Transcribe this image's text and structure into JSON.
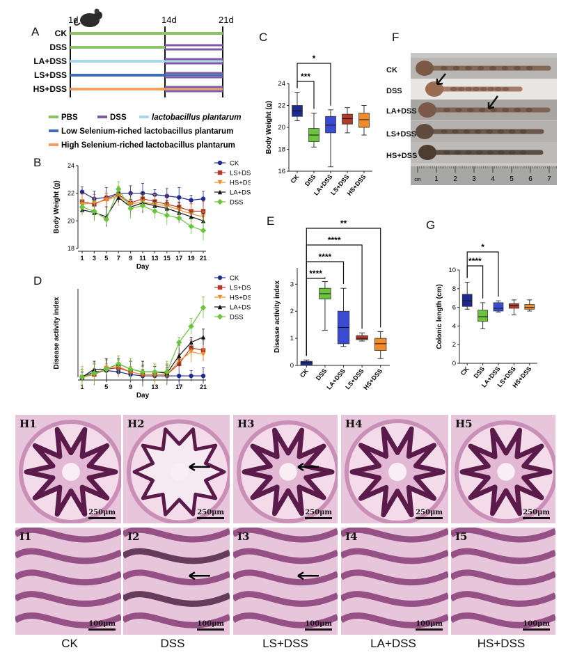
{
  "panel_labels": {
    "A": "A",
    "B": "B",
    "C": "C",
    "D": "D",
    "E": "E",
    "F": "F",
    "G": "G"
  },
  "panelA": {
    "days": [
      "1d",
      "14d",
      "21d"
    ],
    "groups": [
      "CK",
      "DSS",
      "LA+DSS",
      "LS+DSS",
      "HS+DSS"
    ],
    "legend": [
      {
        "label": "PBS",
        "color": "#8fc166",
        "italic": false
      },
      {
        "label": "DSS",
        "color": "#7b5aa6",
        "italic": false
      },
      {
        "label": "lactobacillus plantarum",
        "color": "#a9d8ee",
        "italic": true
      },
      {
        "label": "Low Selenium-riched lactobacillus plantarum",
        "color": "#3f6db5",
        "italic": false
      },
      {
        "label": "High Selenium-riched lactobacillus plantarum",
        "color": "#f0a061",
        "italic": false
      }
    ]
  },
  "panelF": {
    "groups": [
      "CK",
      "DSS",
      "LA+DSS",
      "LS+DSS",
      "HS+DSS"
    ],
    "ruler": [
      "cm",
      "1",
      "2",
      "3",
      "4",
      "5",
      "6",
      "7"
    ]
  },
  "histology": {
    "row1": [
      "H1",
      "H2",
      "H3",
      "H4",
      "H5"
    ],
    "row2": [
      "I1",
      "I2",
      "I3",
      "I4",
      "I5"
    ],
    "scale_row1": "250μm",
    "scale_row2": "100μm",
    "groups": [
      "CK",
      "DSS",
      "LS+DSS",
      "LA+DSS",
      "HS+DSS"
    ]
  },
  "chart_data": [
    {
      "id": "B",
      "type": "line",
      "ylabel": "Body Weight (g)",
      "xlabel": "Day",
      "x": [
        1,
        3,
        5,
        7,
        9,
        11,
        13,
        15,
        17,
        19,
        21
      ],
      "xticks": [
        "1",
        "3",
        "5",
        "7",
        "9",
        "11",
        "13",
        "15",
        "17",
        "19",
        "21"
      ],
      "ylim": [
        18,
        24
      ],
      "yticks": [
        "18",
        "20",
        "22",
        "24"
      ],
      "legend_position": "right",
      "series": [
        {
          "name": "CK",
          "color": "#1f2a8f",
          "marker": "circle",
          "values": [
            22.1,
            21.6,
            21.7,
            22.0,
            22.0,
            22.0,
            21.9,
            21.8,
            21.7,
            21.5,
            21.6
          ]
        },
        {
          "name": "LS+DSS",
          "color": "#b23a2a",
          "marker": "square",
          "values": [
            21.4,
            21.2,
            21.6,
            21.9,
            21.3,
            21.6,
            21.4,
            21.2,
            21.0,
            20.7,
            20.7
          ]
        },
        {
          "name": "HS+DSS",
          "color": "#f08c2a",
          "marker": "triangle-down",
          "values": [
            21.2,
            21.3,
            21.5,
            21.8,
            21.2,
            21.4,
            21.2,
            21.1,
            20.8,
            20.5,
            20.3
          ]
        },
        {
          "name": "LA+DSS",
          "color": "#111111",
          "marker": "triangle-up",
          "values": [
            20.8,
            20.6,
            20.3,
            21.7,
            21.0,
            21.3,
            21.1,
            20.9,
            20.6,
            20.3,
            20.0
          ]
        },
        {
          "name": "DSS",
          "color": "#6ac43d",
          "marker": "diamond",
          "values": [
            21.0,
            20.7,
            20.1,
            22.3,
            20.9,
            21.1,
            20.7,
            20.4,
            20.2,
            19.6,
            19.3
          ]
        }
      ]
    },
    {
      "id": "C",
      "type": "boxplot",
      "ylabel": "Body Weight (g)",
      "categories": [
        "CK",
        "DSS",
        "LA+DSS",
        "LS+DSS",
        "HS+DSS"
      ],
      "ylim": [
        16,
        24
      ],
      "yticks": [
        "16",
        "18",
        "20",
        "22",
        "24"
      ],
      "boxes": [
        {
          "min": 20.6,
          "q1": 21.0,
          "median": 21.5,
          "q3": 22.0,
          "max": 23.2,
          "color": "#1f2a8f"
        },
        {
          "min": 18.2,
          "q1": 18.7,
          "median": 19.3,
          "q3": 19.9,
          "max": 21.3,
          "color": "#6ac43d"
        },
        {
          "min": 16.4,
          "q1": 19.5,
          "median": 20.2,
          "q3": 21.0,
          "max": 21.6,
          "color": "#3a4bd1"
        },
        {
          "min": 19.5,
          "q1": 20.3,
          "median": 20.8,
          "q3": 21.2,
          "max": 21.8,
          "color": "#b23a2a"
        },
        {
          "min": 19.3,
          "q1": 20.0,
          "median": 20.7,
          "q3": 21.3,
          "max": 22.0,
          "color": "#f08c2a"
        }
      ],
      "significance": [
        {
          "from": "CK",
          "to": "DSS",
          "label": "***"
        },
        {
          "from": "CK",
          "to": "LA+DSS",
          "label": "*"
        }
      ]
    },
    {
      "id": "D",
      "type": "line",
      "ylabel": "Disease activity index",
      "xlabel": "Day",
      "x": [
        1,
        3,
        5,
        7,
        9,
        11,
        13,
        15,
        17,
        19,
        21
      ],
      "xticks": [
        "1",
        "5",
        "9",
        "13",
        "17",
        "21"
      ],
      "ylim": [
        0,
        3.3
      ],
      "yticks": [],
      "legend_position": "right",
      "series": [
        {
          "name": "CK",
          "color": "#1f2a8f",
          "marker": "circle",
          "values": [
            0,
            0.2,
            0.25,
            0.2,
            0.1,
            0.05,
            0.05,
            0.05,
            0.05,
            0.05,
            0.05
          ]
        },
        {
          "name": "LS+DSS",
          "color": "#b23a2a",
          "marker": "square",
          "values": [
            0,
            0.1,
            0.3,
            0.35,
            0.2,
            0.1,
            0.1,
            0.1,
            0.5,
            1.1,
            1.0
          ]
        },
        {
          "name": "HS+DSS",
          "color": "#f08c2a",
          "marker": "triangle-down",
          "values": [
            0,
            0.1,
            0.35,
            0.4,
            0.2,
            0.1,
            0.1,
            0.1,
            0.6,
            0.95,
            0.85
          ]
        },
        {
          "name": "LA+DSS",
          "color": "#111111",
          "marker": "triangle-up",
          "values": [
            0,
            0.3,
            0.3,
            0.5,
            0.3,
            0.2,
            0.2,
            0.15,
            0.8,
            1.3,
            1.5
          ]
        },
        {
          "name": "DSS",
          "color": "#6ac43d",
          "marker": "diamond",
          "values": [
            0,
            0.15,
            0.3,
            0.5,
            0.3,
            0.2,
            0.2,
            0.2,
            1.3,
            1.9,
            2.6
          ]
        }
      ]
    },
    {
      "id": "E",
      "type": "boxplot",
      "ylabel": "Disease activity index",
      "categories": [
        "CK",
        "DSS",
        "LA+DSS",
        "LS+DSS",
        "HS+DSS"
      ],
      "ylim": [
        0,
        3.6
      ],
      "yticks": [
        "0",
        "1",
        "2",
        "3"
      ],
      "boxes": [
        {
          "min": 0,
          "q1": 0,
          "median": 0.1,
          "q3": 0.15,
          "max": 0.2,
          "color": "#1f2a8f"
        },
        {
          "min": 1.3,
          "q1": 2.45,
          "median": 2.65,
          "q3": 2.85,
          "max": 3.1,
          "color": "#6ac43d"
        },
        {
          "min": 0.7,
          "q1": 0.8,
          "median": 1.4,
          "q3": 2.0,
          "max": 2.85,
          "color": "#3a4bd1"
        },
        {
          "min": 0.9,
          "q1": 0.95,
          "median": 1.0,
          "q3": 1.1,
          "max": 1.2,
          "color": "#b23a2a"
        },
        {
          "min": 0.25,
          "q1": 0.55,
          "median": 0.8,
          "q3": 1.0,
          "max": 1.25,
          "color": "#f08c2a"
        }
      ],
      "significance": [
        {
          "from": "CK",
          "to": "DSS",
          "label": "****"
        },
        {
          "from": "CK",
          "to": "LA+DSS",
          "label": "****"
        },
        {
          "from": "CK",
          "to": "LS+DSS",
          "label": "****"
        },
        {
          "from": "CK",
          "to": "HS+DSS",
          "label": "**"
        }
      ]
    },
    {
      "id": "G",
      "type": "boxplot",
      "ylabel": "Colonic length (cm)",
      "categories": [
        "CK",
        "DSS",
        "LA+DSS",
        "LS+DSS",
        "HS+DSS"
      ],
      "ylim": [
        0,
        10
      ],
      "yticks": [
        "0",
        "2",
        "4",
        "6",
        "8",
        "10"
      ],
      "boxes": [
        {
          "min": 5.8,
          "q1": 6.1,
          "median": 6.7,
          "q3": 7.4,
          "max": 8.7,
          "color": "#1f2a8f"
        },
        {
          "min": 3.7,
          "q1": 4.5,
          "median": 5.0,
          "q3": 5.7,
          "max": 6.5,
          "color": "#6ac43d"
        },
        {
          "min": 5.5,
          "q1": 5.6,
          "median": 5.9,
          "q3": 6.5,
          "max": 6.7,
          "color": "#3a4bd1"
        },
        {
          "min": 5.2,
          "q1": 5.9,
          "median": 6.2,
          "q3": 6.4,
          "max": 6.8,
          "color": "#b23a2a"
        },
        {
          "min": 5.6,
          "q1": 5.8,
          "median": 6.0,
          "q3": 6.3,
          "max": 6.8,
          "color": "#f08c2a"
        }
      ],
      "significance": [
        {
          "from": "CK",
          "to": "DSS",
          "label": "****"
        },
        {
          "from": "CK",
          "to": "LA+DSS",
          "label": "*"
        }
      ]
    }
  ]
}
